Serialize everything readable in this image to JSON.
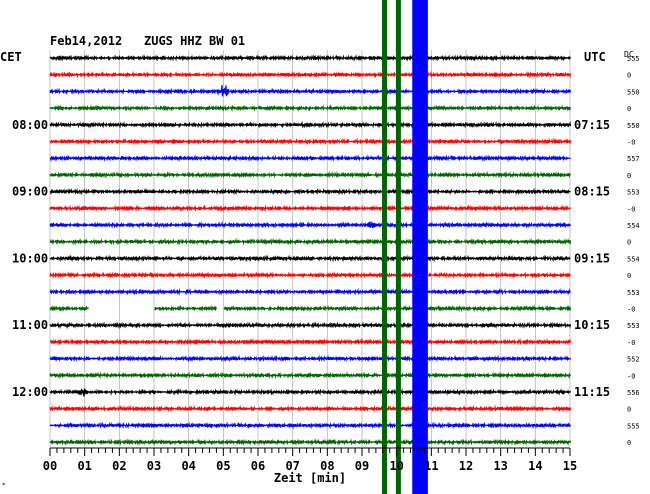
{
  "header": {
    "date": "Feb14,2012",
    "station": "ZUGS HHZ BW 01",
    "left_zone": "CET",
    "right_zone": "UTC",
    "dc_label": "DC"
  },
  "chart_data": {
    "type": "line",
    "title": "Feb14,2012   ZUGS HHZ BW 01",
    "xlabel": "Zeit [min]",
    "x_range": [
      0,
      15
    ],
    "x_ticks": [
      "00",
      "01",
      "02",
      "03",
      "04",
      "05",
      "06",
      "07",
      "08",
      "09",
      "10",
      "11",
      "12",
      "13",
      "14",
      "15"
    ],
    "grid": true,
    "trace_interval_min": 15,
    "trace_count": 24,
    "trace_colors": [
      "#000000",
      "#ff0000",
      "#0000ff",
      "#006400"
    ],
    "left_hour_labels": [
      {
        "trace": 4,
        "label": "08:00"
      },
      {
        "trace": 8,
        "label": "09:00"
      },
      {
        "trace": 12,
        "label": "10:00"
      },
      {
        "trace": 16,
        "label": "11:00"
      },
      {
        "trace": 20,
        "label": "12:00"
      }
    ],
    "right_hour_labels": [
      {
        "trace": 4,
        "label": "07:15"
      },
      {
        "trace": 8,
        "label": "08:15"
      },
      {
        "trace": 12,
        "label": "09:15"
      },
      {
        "trace": 16,
        "label": "10:15"
      },
      {
        "trace": 20,
        "label": "11:15"
      }
    ],
    "dc_values": [
      "555",
      "0",
      "550",
      "0",
      "550",
      "-0",
      "557",
      "0",
      "553",
      "-0",
      "554",
      "0",
      "554",
      "0",
      "553",
      "-0",
      "553",
      "-0",
      "552",
      "-0",
      "556",
      "0",
      "555",
      "0"
    ],
    "events": [
      {
        "trace": 2,
        "start_min": 4.7,
        "end_min": 5.6,
        "amplitude": "medium"
      },
      {
        "trace": 10,
        "start_min": 9.1,
        "end_min": 9.7,
        "amplitude": "small"
      },
      {
        "trace": 20,
        "start_min": 0.7,
        "end_min": 1.3,
        "amplitude": "medium"
      }
    ],
    "data_gaps": [
      {
        "trace": 15,
        "start_min": 1.1,
        "end_min": 3.0
      },
      {
        "trace": 15,
        "start_min": 4.8,
        "end_min": 5.0
      }
    ],
    "vertical_bands": [
      {
        "color": "#006400",
        "x_min": 9.65,
        "first_trace": 0,
        "extends_to_bottom": true
      },
      {
        "color": "#006400",
        "x_min": 10.05,
        "first_trace": 0,
        "extends_to_bottom": true
      },
      {
        "color": "#0000ff",
        "x_min": 10.45,
        "x_max": 10.9,
        "first_trace": 0,
        "extends_to_bottom": true
      }
    ]
  }
}
